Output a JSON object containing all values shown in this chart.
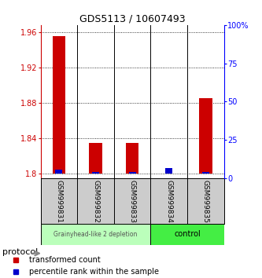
{
  "title": "GDS5113 / 10607493",
  "samples": [
    "GSM999831",
    "GSM999832",
    "GSM999833",
    "GSM999834",
    "GSM999835"
  ],
  "red_values": [
    1.955,
    1.835,
    1.835,
    1.8,
    1.885
  ],
  "blue_values": [
    0.004,
    0.002,
    0.002,
    0.006,
    0.002
  ],
  "ylim_left": [
    1.795,
    1.968
  ],
  "ylim_right": [
    0,
    100
  ],
  "yticks_left": [
    1.8,
    1.84,
    1.88,
    1.92,
    1.96
  ],
  "ytick_labels_left": [
    "1.8",
    "1.84",
    "1.88",
    "1.92",
    "1.96"
  ],
  "yticks_right": [
    0,
    25,
    50,
    75,
    100
  ],
  "ytick_labels_right": [
    "0",
    "25",
    "50",
    "75",
    "100%"
  ],
  "group1_indices": [
    0,
    1,
    2
  ],
  "group2_indices": [
    3,
    4
  ],
  "group1_label": "Grainyhead-like 2 depletion",
  "group2_label": "control",
  "group1_color": "#bbffbb",
  "group2_color": "#44ee44",
  "protocol_label": "protocol",
  "legend_red": "transformed count",
  "legend_blue": "percentile rank within the sample",
  "bar_width": 0.35,
  "red_color": "#cc0000",
  "blue_color": "#0000cc",
  "bg_color": "#ffffff",
  "base_value": 1.8,
  "sample_label_bg": "#cccccc"
}
